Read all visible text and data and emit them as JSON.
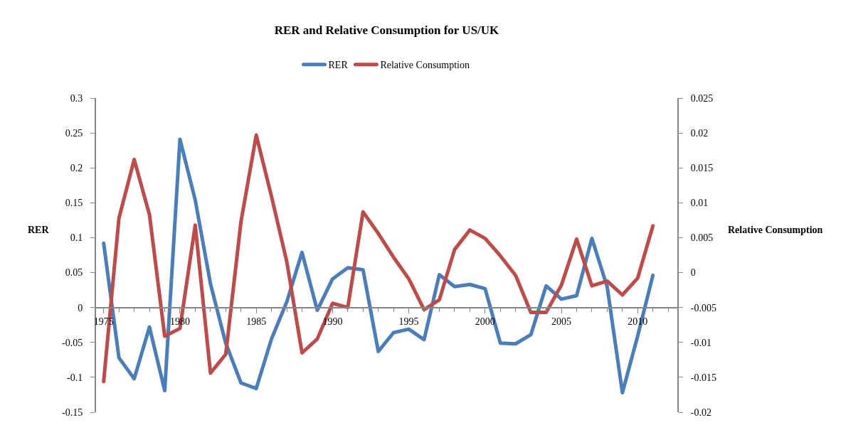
{
  "chart_data": {
    "type": "line",
    "title": "RER and Relative Consumption for US/UK",
    "ylabel": "RER",
    "y2label": "Relative Consumption",
    "x": [
      1975,
      1976,
      1977,
      1978,
      1979,
      1980,
      1981,
      1982,
      1983,
      1984,
      1985,
      1986,
      1987,
      1988,
      1989,
      1990,
      1991,
      1992,
      1993,
      1994,
      1995,
      1996,
      1997,
      1998,
      1999,
      2000,
      2001,
      2002,
      2003,
      2004,
      2005,
      2006,
      2007,
      2008,
      2009,
      2010,
      2011
    ],
    "series": [
      {
        "name": "RER",
        "color": "#4a7ebb",
        "values": [
          0.092,
          -0.072,
          -0.102,
          -0.028,
          -0.119,
          0.241,
          0.154,
          0.034,
          -0.051,
          -0.108,
          -0.116,
          -0.045,
          0.008,
          0.079,
          -0.004,
          0.041,
          0.057,
          0.054,
          -0.063,
          -0.036,
          -0.031,
          -0.046,
          0.047,
          0.03,
          0.033,
          0.027,
          -0.051,
          -0.052,
          -0.039,
          0.031,
          0.012,
          0.017,
          0.099,
          0.03,
          -0.122,
          -0.041,
          0.046
        ]
      },
      {
        "name": "Relative Consumption",
        "color": "#be4b48",
        "axis": "y2",
        "values": [
          -0.0156,
          0.0078,
          0.0162,
          0.0083,
          -0.0091,
          -0.008,
          0.0068,
          -0.0144,
          -0.0117,
          0.0073,
          0.0197,
          0.0109,
          0.0016,
          -0.0115,
          -0.0095,
          -0.0044,
          -0.005,
          0.0087,
          0.0056,
          0.0022,
          -0.0009,
          -0.0053,
          -0.0039,
          0.0033,
          0.0061,
          0.0049,
          0.0024,
          -0.0004,
          -0.0057,
          -0.0057,
          -0.0018,
          0.0048,
          -0.0019,
          -0.0012,
          -0.0032,
          -0.0008,
          0.0067
        ]
      }
    ],
    "xlim": [
      1974.5,
      2012.6
    ],
    "xticks": [
      1975,
      1980,
      1985,
      1990,
      1995,
      2000,
      2005,
      2010
    ],
    "ylim": [
      -0.15,
      0.3
    ],
    "yticks": [
      -0.15,
      -0.1,
      -0.05,
      0,
      0.05,
      0.1,
      0.15,
      0.2,
      0.25,
      0.3
    ],
    "y2lim": [
      -0.02,
      0.025
    ],
    "y2ticks": [
      -0.02,
      -0.015,
      -0.01,
      -0.005,
      0,
      0.005,
      0.01,
      0.015,
      0.02,
      0.025
    ],
    "legend": "top",
    "marker": "none",
    "line_style": "solid"
  }
}
